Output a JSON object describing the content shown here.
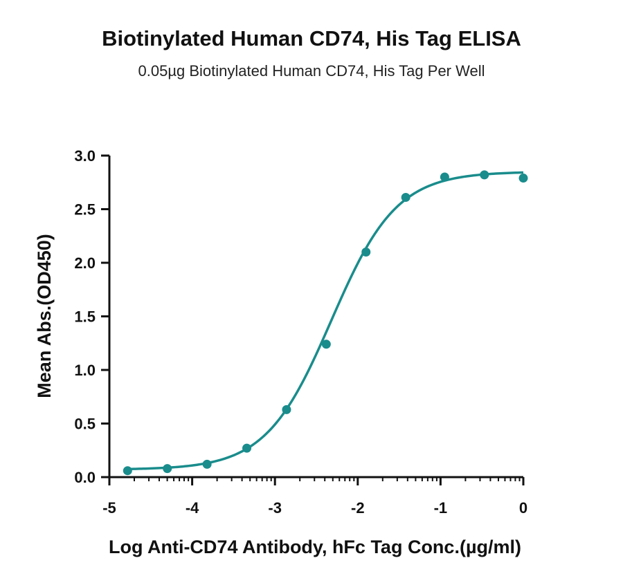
{
  "chart_data": {
    "type": "scatter",
    "title": "Biotinylated Human CD74, His Tag ELISA",
    "subtitle": "0.05µg Biotinylated  Human CD74, His Tag Per Well",
    "xlabel": "Log Anti-CD74 Antibody, hFc Tag Conc.(µg/ml)",
    "ylabel": "Mean Abs.(OD450)",
    "xlim": [
      -5,
      0
    ],
    "ylim": [
      0,
      3.0
    ],
    "xticks": [
      "-5",
      "-4",
      "-3",
      "-2",
      "-1",
      "0"
    ],
    "yticks": [
      "0.0",
      "0.5",
      "1.0",
      "1.5",
      "2.0",
      "2.5",
      "3.0"
    ],
    "grid": false,
    "color": "#1a8c8c",
    "series": [
      {
        "x": [
          -4.78,
          -4.3,
          -3.82,
          -3.34,
          -2.86,
          -2.38,
          -1.9,
          -1.42,
          -0.95,
          -0.47,
          0.0
        ],
        "y": [
          0.06,
          0.08,
          0.12,
          0.27,
          0.63,
          1.24,
          2.1,
          2.61,
          2.8,
          2.82,
          2.79
        ]
      }
    ],
    "fit": {
      "model": "4PL",
      "bottom": 0.07,
      "top": 2.85,
      "log_ec50": -2.32,
      "hill_slope": 1.1
    }
  }
}
